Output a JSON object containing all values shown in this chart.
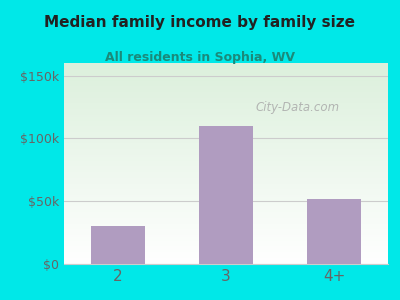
{
  "categories": [
    "2",
    "3",
    "4+"
  ],
  "values": [
    30000,
    110000,
    52000
  ],
  "bar_color": "#b09cc0",
  "title": "Median family income by family size",
  "subtitle": "All residents in Sophia, WV",
  "title_color": "#222222",
  "subtitle_color": "#1a8a7a",
  "outer_bg": "#00e8e8",
  "yticks": [
    0,
    50000,
    100000,
    150000
  ],
  "ytick_labels": [
    "$0",
    "$50k",
    "$100k",
    "$150k"
  ],
  "ylim": [
    0,
    160000
  ],
  "watermark": "City-Data.com",
  "watermark_color": "#aaaaaa",
  "axis_label_color": "#666666",
  "grid_color": "#cccccc"
}
